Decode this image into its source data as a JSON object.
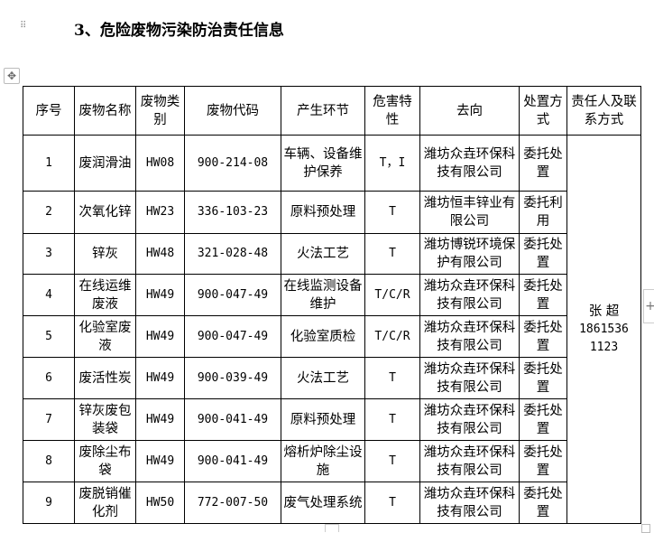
{
  "section_title": "3、危险废物污染防治责任信息",
  "table": {
    "headers": [
      "序号",
      "废物名称",
      "废物类别",
      "废物代码",
      "产生环节",
      "危害特性",
      "去向",
      "处置方式",
      "责任人及联系方式"
    ],
    "rows": [
      {
        "no": "1",
        "name": "废润滑油",
        "category": "HW08",
        "code": "900-214-08",
        "stage": "车辆、设备维护保养",
        "hazard": "T，I",
        "destination": "潍坊众垚环保科技有限公司",
        "method": "委托处置"
      },
      {
        "no": "2",
        "name": "次氧化锌",
        "category": "HW23",
        "code": "336-103-23",
        "stage": "原料预处理",
        "hazard": "T",
        "destination": "潍坊恒丰锌业有限公司",
        "method": "委托利用"
      },
      {
        "no": "3",
        "name": "锌灰",
        "category": "HW48",
        "code": "321-028-48",
        "stage": "火法工艺",
        "hazard": "T",
        "destination": "潍坊博锐环境保护有限公司",
        "method": "委托处置"
      },
      {
        "no": "4",
        "name": "在线运维废液",
        "category": "HW49",
        "code": "900-047-49",
        "stage": "在线监测设备维护",
        "hazard": "T/C/R",
        "destination": "潍坊众垚环保科技有限公司",
        "method": "委托处置"
      },
      {
        "no": "5",
        "name": "化验室废液",
        "category": "HW49",
        "code": "900-047-49",
        "stage": "化验室质检",
        "hazard": "T/C/R",
        "destination": "潍坊众垚环保科技有限公司",
        "method": "委托处置"
      },
      {
        "no": "6",
        "name": "废活性炭",
        "category": "HW49",
        "code": "900-039-49",
        "stage": "火法工艺",
        "hazard": "T",
        "destination": "潍坊众垚环保科技有限公司",
        "method": "委托处置"
      },
      {
        "no": "7",
        "name": "锌灰废包装袋",
        "category": "HW49",
        "code": "900-041-49",
        "stage": "原料预处理",
        "hazard": "T",
        "destination": "潍坊众垚环保科技有限公司",
        "method": "委托处置"
      },
      {
        "no": "8",
        "name": "废除尘布袋",
        "category": "HW49",
        "code": "900-041-49",
        "stage": "熔析炉除尘设施",
        "hazard": "T",
        "destination": "潍坊众垚环保科技有限公司",
        "method": "委托处置"
      },
      {
        "no": "9",
        "name": "废脱销催化剂",
        "category": "HW50",
        "code": "772-007-50",
        "stage": "废气处理系统",
        "hazard": "T",
        "destination": "潍坊众垚环保科技有限公司",
        "method": "委托处置"
      }
    ],
    "contact": {
      "name": "张 超",
      "phone_line1": "1861536",
      "phone_line2": "1123"
    }
  }
}
